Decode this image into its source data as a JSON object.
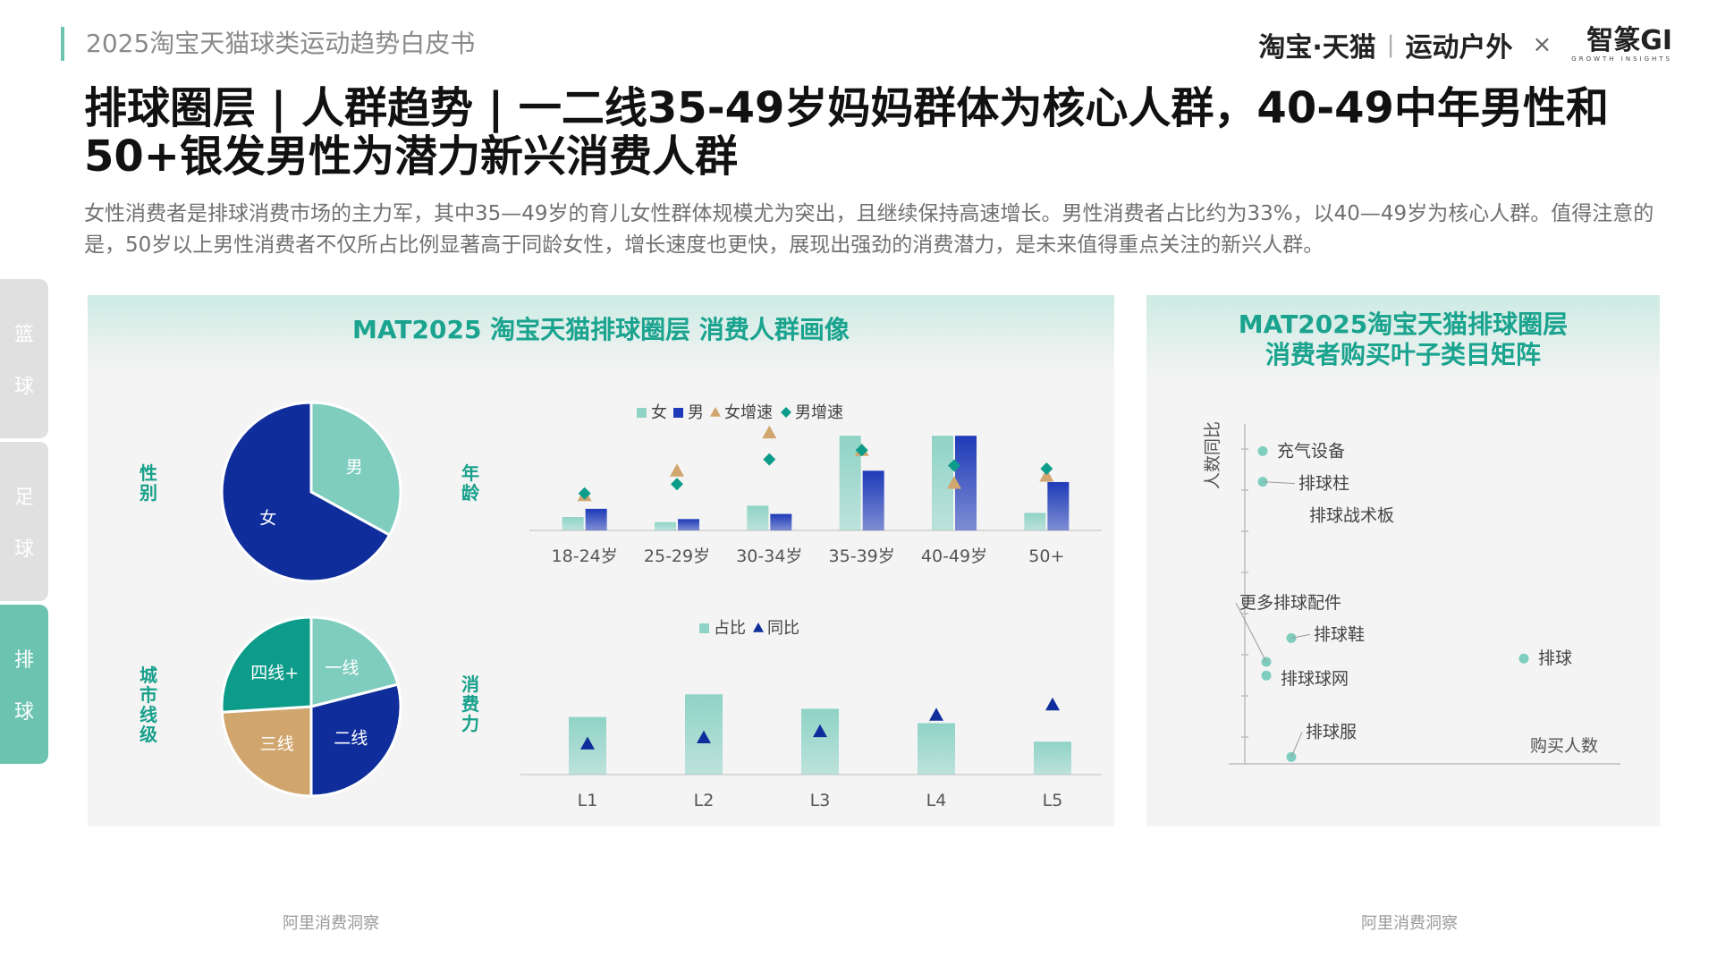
{
  "header": {
    "report_title": "2025淘宝天猫球类运动趋势白皮书",
    "brand_left": "淘宝·天猫",
    "brand_divider": "|",
    "brand_mid": "运动户外",
    "brand_x": "×",
    "brand_right": "智篆GI",
    "brand_right_sub": "GROWTH INSIGHTS"
  },
  "title": "排球圈层 | 人群趋势 | 一二线35-49岁妈妈群体为核心人群，40-49中年男性和50+银发男性为潜力新兴消费人群",
  "description": "女性消费者是排球消费市场的主力军，其中35—49岁的育儿女性群体规模尤为突出，且继续保持高速增长。男性消费者占比约为33%，以40—49岁为核心人群。值得注意的是，50岁以上男性消费者不仅所占比例显著高于同龄女性，增长速度也更快，展现出强劲的消费潜力，是未来值得重点关注的新兴人群。",
  "side_tabs": [
    {
      "c1": "篮",
      "c2": "球",
      "active": false
    },
    {
      "c1": "足",
      "c2": "球",
      "active": false
    },
    {
      "c1": "排",
      "c2": "球",
      "active": true
    }
  ],
  "left_panel": {
    "title": "MAT2025 淘宝天猫排球圈层 消费人群画像",
    "source": "阿里消费洞察"
  },
  "right_panel": {
    "title_line1": "MAT2025淘宝天猫排球圈层",
    "title_line2": "消费者购买叶子类目矩阵",
    "source": "阿里消费洞察"
  },
  "colors": {
    "teal_light": "#7fcdbf",
    "navy": "#0f2e9c",
    "teal_dark": "#0e9c8a",
    "tan": "#d1a66e",
    "blue": "#1e3ab8",
    "accent": "#17a08b"
  },
  "chart_data": [
    {
      "type": "pie",
      "label": "性别",
      "slices": [
        {
          "name": "男",
          "value": 33,
          "color": "#7fcdbf"
        },
        {
          "name": "女",
          "value": 67,
          "color": "#0f2e9c"
        }
      ]
    },
    {
      "type": "bar",
      "label": "年龄",
      "categories": [
        "18-24岁",
        "25-29岁",
        "30-34岁",
        "35-39岁",
        "40-49岁",
        "50+"
      ],
      "series": [
        {
          "name": "女",
          "kind": "bar",
          "values": [
            0.13,
            0.08,
            0.24,
            0.92,
            0.92,
            0.17
          ],
          "color": "#8fd3c6"
        },
        {
          "name": "男",
          "kind": "bar",
          "values": [
            0.21,
            0.11,
            0.16,
            0.58,
            0.92,
            0.47
          ],
          "color": "#1e3ab8"
        },
        {
          "name": "女增速",
          "kind": "marker-triangle",
          "values": [
            0.34,
            0.58,
            0.95,
            0.78,
            0.46,
            0.53
          ],
          "color": "#d1a66e"
        },
        {
          "name": "男增速",
          "kind": "marker-diamond",
          "values": [
            0.36,
            0.45,
            0.69,
            0.78,
            0.63,
            0.6
          ],
          "color": "#0e9c8a"
        }
      ],
      "ylim": [
        0,
        1
      ]
    },
    {
      "type": "pie",
      "label": "城市线级",
      "slices": [
        {
          "name": "一线",
          "value": 21,
          "color": "#7fcdbf"
        },
        {
          "name": "二线",
          "value": 29,
          "color": "#0f2e9c"
        },
        {
          "name": "三线",
          "value": 24,
          "color": "#d1a66e"
        },
        {
          "name": "四线+",
          "value": 26,
          "color": "#0e9c8a"
        }
      ]
    },
    {
      "type": "bar",
      "label": "消费力",
      "categories": [
        "L1",
        "L2",
        "L3",
        "L4",
        "L5"
      ],
      "series": [
        {
          "name": "占比",
          "kind": "bar",
          "values": [
            0.56,
            0.78,
            0.64,
            0.5,
            0.32
          ],
          "color": "#8fd3c6"
        },
        {
          "name": "同比",
          "kind": "marker-triangle",
          "values": [
            0.3,
            0.36,
            0.42,
            0.58,
            0.68
          ],
          "color": "#0f2e9c"
        }
      ],
      "ylim": [
        0,
        1
      ]
    },
    {
      "type": "scatter",
      "xlabel": "购买人数",
      "ylabel": "人数同比",
      "points": [
        {
          "name": "充气设备",
          "x": 0.05,
          "y": 0.92
        },
        {
          "name": "排球柱",
          "x": 0.05,
          "y": 0.83
        },
        {
          "name": "排球战术板",
          "x": 0.06,
          "y": 0.83
        },
        {
          "name": "更多排球配件",
          "x": 0.06,
          "y": 0.3
        },
        {
          "name": "排球鞋",
          "x": 0.13,
          "y": 0.37
        },
        {
          "name": "排球",
          "x": 0.78,
          "y": 0.31
        },
        {
          "name": "排球球网",
          "x": 0.06,
          "y": 0.26
        },
        {
          "name": "排球服",
          "x": 0.13,
          "y": 0.02
        }
      ]
    }
  ]
}
